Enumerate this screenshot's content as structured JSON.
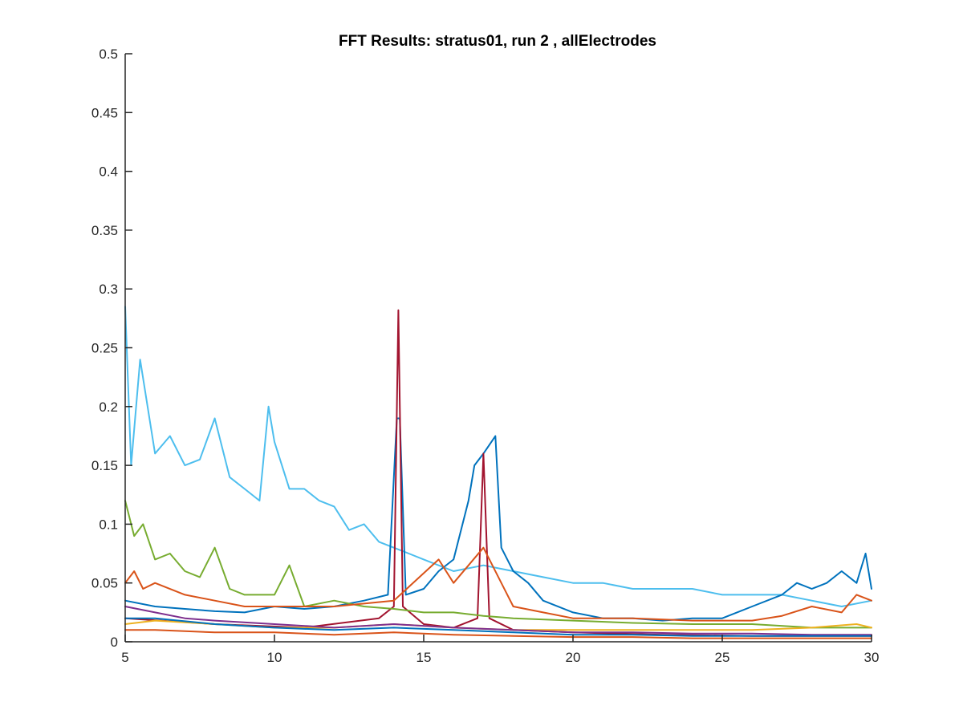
{
  "chart_data": {
    "type": "line",
    "title": "FFT Results: stratus01, run 2 , allElectrodes",
    "xlabel": "",
    "ylabel": "",
    "xlim": [
      5,
      30
    ],
    "ylim": [
      0,
      0.5
    ],
    "x_ticks": [
      "5",
      "10",
      "15",
      "20",
      "25",
      "30"
    ],
    "y_ticks": [
      "0",
      "0.05",
      "0.1",
      "0.15",
      "0.2",
      "0.25",
      "0.3",
      "0.35",
      "0.4",
      "0.45",
      "0.5"
    ],
    "grid": false,
    "legend": "none",
    "series": [
      {
        "color": "#4DBEEE",
        "x": [
          5.0,
          5.2,
          5.5,
          6.0,
          6.5,
          7.0,
          7.5,
          8.0,
          8.5,
          9.0,
          9.5,
          9.8,
          10.0,
          10.5,
          11.0,
          11.5,
          12.0,
          12.5,
          13.0,
          13.5,
          14.0,
          14.5,
          15.0,
          16.0,
          17.0,
          18.0,
          19.0,
          20.0,
          21.0,
          22.0,
          23.0,
          24.0,
          25.0,
          26.0,
          27.0,
          28.0,
          29.0,
          30.0
        ],
        "y": [
          0.285,
          0.15,
          0.24,
          0.16,
          0.175,
          0.15,
          0.155,
          0.19,
          0.14,
          0.13,
          0.12,
          0.2,
          0.17,
          0.13,
          0.13,
          0.12,
          0.115,
          0.095,
          0.1,
          0.085,
          0.08,
          0.075,
          0.07,
          0.06,
          0.065,
          0.06,
          0.055,
          0.05,
          0.05,
          0.045,
          0.045,
          0.045,
          0.04,
          0.04,
          0.04,
          0.035,
          0.03,
          0.035
        ]
      },
      {
        "color": "#0072BD",
        "x": [
          5.0,
          6.0,
          7.0,
          8.0,
          9.0,
          10.0,
          11.0,
          12.0,
          13.0,
          13.8,
          14.1,
          14.2,
          14.4,
          15.0,
          15.5,
          16.0,
          16.5,
          16.7,
          17.0,
          17.4,
          17.6,
          18.0,
          18.5,
          19.0,
          20.0,
          21.0,
          22.0,
          23.0,
          24.0,
          25.0,
          26.0,
          27.0,
          27.5,
          28.0,
          28.5,
          29.0,
          29.5,
          29.8,
          30.0
        ],
        "y": [
          0.035,
          0.03,
          0.028,
          0.026,
          0.025,
          0.03,
          0.028,
          0.03,
          0.035,
          0.04,
          0.19,
          0.19,
          0.04,
          0.045,
          0.06,
          0.07,
          0.12,
          0.15,
          0.16,
          0.175,
          0.08,
          0.06,
          0.05,
          0.035,
          0.025,
          0.02,
          0.02,
          0.018,
          0.02,
          0.02,
          0.03,
          0.04,
          0.05,
          0.045,
          0.05,
          0.06,
          0.05,
          0.075,
          0.045
        ]
      },
      {
        "color": "#A2142F",
        "x": [
          5.0,
          8.0,
          11.0,
          13.5,
          14.0,
          14.15,
          14.3,
          15.0,
          16.0,
          16.8,
          17.0,
          17.2,
          18.0,
          20.0,
          23.0,
          26.0,
          30.0
        ],
        "y": [
          0.02,
          0.015,
          0.012,
          0.02,
          0.03,
          0.282,
          0.03,
          0.015,
          0.012,
          0.02,
          0.16,
          0.02,
          0.01,
          0.008,
          0.006,
          0.005,
          0.005
        ]
      },
      {
        "color": "#77AC30",
        "x": [
          5.0,
          5.3,
          5.6,
          6.0,
          6.5,
          7.0,
          7.5,
          8.0,
          8.5,
          9.0,
          10.0,
          10.5,
          11.0,
          12.0,
          13.0,
          14.0,
          15.0,
          16.0,
          17.0,
          18.0,
          20.0,
          22.0,
          24.0,
          26.0,
          28.0,
          30.0
        ],
        "y": [
          0.12,
          0.09,
          0.1,
          0.07,
          0.075,
          0.06,
          0.055,
          0.08,
          0.045,
          0.04,
          0.04,
          0.065,
          0.03,
          0.035,
          0.03,
          0.028,
          0.025,
          0.025,
          0.022,
          0.02,
          0.018,
          0.016,
          0.015,
          0.015,
          0.012,
          0.012
        ]
      },
      {
        "color": "#D95319",
        "x": [
          5.0,
          5.3,
          5.6,
          6.0,
          7.0,
          8.0,
          9.0,
          10.0,
          12.0,
          14.0,
          15.5,
          16.0,
          17.0,
          18.0,
          19.0,
          20.0,
          22.0,
          24.0,
          26.0,
          27.0,
          28.0,
          29.0,
          29.5,
          30.0
        ],
        "y": [
          0.05,
          0.06,
          0.045,
          0.05,
          0.04,
          0.035,
          0.03,
          0.03,
          0.03,
          0.035,
          0.07,
          0.05,
          0.08,
          0.03,
          0.025,
          0.02,
          0.02,
          0.018,
          0.018,
          0.022,
          0.03,
          0.025,
          0.04,
          0.035
        ]
      },
      {
        "color": "#EDB120",
        "x": [
          5.0,
          6.0,
          8.0,
          10.0,
          12.0,
          14.0,
          16.0,
          18.0,
          20.0,
          22.0,
          24.0,
          26.0,
          28.0,
          29.5,
          30.0
        ],
        "y": [
          0.015,
          0.018,
          0.015,
          0.012,
          0.012,
          0.015,
          0.012,
          0.01,
          0.01,
          0.01,
          0.01,
          0.01,
          0.012,
          0.015,
          0.012
        ]
      },
      {
        "color": "#7E2F8E",
        "x": [
          5.0,
          6.0,
          7.0,
          8.0,
          10.0,
          12.0,
          14.0,
          16.0,
          18.0,
          20.0,
          22.0,
          24.0,
          26.0,
          28.0,
          30.0
        ],
        "y": [
          0.03,
          0.025,
          0.02,
          0.018,
          0.015,
          0.012,
          0.015,
          0.012,
          0.01,
          0.008,
          0.008,
          0.007,
          0.007,
          0.006,
          0.006
        ]
      },
      {
        "color": "#0072BD",
        "x": [
          5.0,
          6.0,
          8.0,
          10.0,
          12.0,
          14.0,
          16.0,
          18.0,
          20.0,
          22.0,
          24.0,
          26.0,
          28.0,
          30.0
        ],
        "y": [
          0.02,
          0.02,
          0.015,
          0.012,
          0.01,
          0.012,
          0.01,
          0.008,
          0.006,
          0.006,
          0.005,
          0.005,
          0.005,
          0.005
        ]
      },
      {
        "color": "#D95319",
        "x": [
          5.0,
          6.0,
          8.0,
          10.0,
          12.0,
          14.0,
          16.0,
          18.0,
          20.0,
          22.0,
          24.0,
          26.0,
          28.0,
          30.0
        ],
        "y": [
          0.01,
          0.01,
          0.008,
          0.008,
          0.006,
          0.008,
          0.006,
          0.005,
          0.004,
          0.004,
          0.003,
          0.003,
          0.003,
          0.003
        ]
      }
    ]
  }
}
